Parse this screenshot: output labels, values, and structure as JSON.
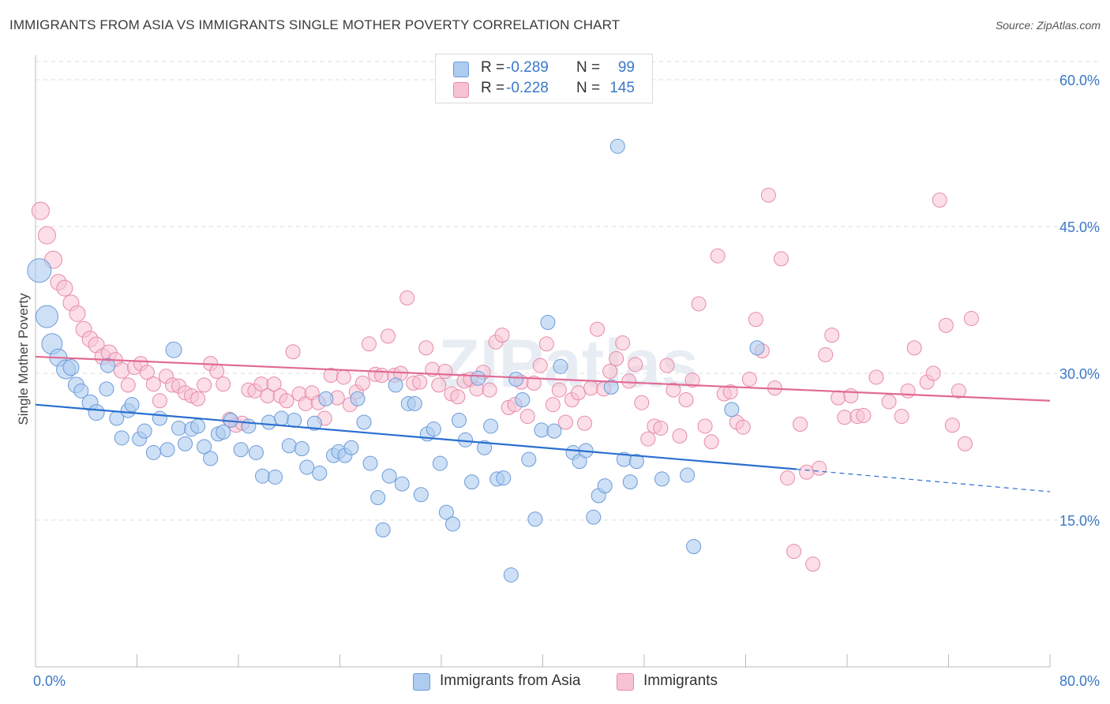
{
  "title": "IMMIGRANTS FROM ASIA VS IMMIGRANTS SINGLE MOTHER POVERTY CORRELATION CHART",
  "source": "Source: ZipAtlas.com",
  "watermark": "ZIPatlas",
  "legend_top": [
    {
      "r_label": "R =",
      "r_value": "-0.289",
      "n_label": "N =",
      "n_value": "99"
    },
    {
      "r_label": "R =",
      "r_value": "-0.228",
      "n_label": "N =",
      "n_value": "145"
    }
  ],
  "legend_bottom": [
    "Immigrants from Asia",
    "Immigrants"
  ],
  "colors": {
    "blue_fill": "#aecbf0",
    "blue_stroke": "#6b9bd8",
    "blue_line": "#2a6fcf",
    "pink_fill": "#f7c3d4",
    "pink_stroke": "#e88aa8",
    "pink_line": "#e06a93",
    "axis_label": "#3a78c9",
    "grid": "#dddddd"
  },
  "chart_data": {
    "type": "scatter",
    "title": "IMMIGRANTS FROM ASIA VS IMMIGRANTS SINGLE MOTHER POVERTY CORRELATION CHART",
    "xlabel": "",
    "ylabel": "Single Mother Poverty",
    "xlim": [
      0,
      80
    ],
    "ylim": [
      0,
      62.5
    ],
    "x_tick_labels": [
      "0.0%",
      "80.0%"
    ],
    "y_ticks": [
      15,
      30,
      45,
      60
    ],
    "y_tick_labels": [
      "15.0%",
      "30.0%",
      "45.0%",
      "60.0%"
    ],
    "grid": true,
    "series": [
      {
        "name": "Immigrants from Asia",
        "r": -0.289,
        "n": 99,
        "trend": {
          "x0": 0,
          "y0": 26.8,
          "x1": 60,
          "y1": 20.2,
          "dashed_to_x": 80,
          "dashed_to_y": 17.9
        },
        "points": [
          [
            0.3,
            40.5,
            14
          ],
          [
            0.9,
            35.8,
            13
          ],
          [
            1.3,
            33.0,
            12
          ],
          [
            1.8,
            31.6,
            10
          ],
          [
            2.4,
            30.4,
            11
          ],
          [
            2.8,
            30.6,
            9
          ],
          [
            3.2,
            28.8,
            9
          ],
          [
            3.6,
            28.2,
            8
          ],
          [
            4.3,
            27.0,
            9
          ],
          [
            4.8,
            26.0,
            9
          ],
          [
            5.6,
            28.4,
            8
          ],
          [
            5.7,
            30.8,
            8
          ],
          [
            6.4,
            25.4,
            8
          ],
          [
            6.8,
            23.4,
            8
          ],
          [
            7.3,
            26.2,
            8
          ],
          [
            7.6,
            26.8,
            8
          ],
          [
            8.2,
            23.3,
            8
          ],
          [
            8.6,
            24.1,
            8
          ],
          [
            9.3,
            21.9,
            8
          ],
          [
            9.8,
            25.4,
            8
          ],
          [
            10.4,
            22.2,
            8
          ],
          [
            10.9,
            32.4,
            9
          ],
          [
            11.3,
            24.4,
            8
          ],
          [
            11.8,
            22.8,
            8
          ],
          [
            12.3,
            24.3,
            8
          ],
          [
            12.8,
            24.6,
            8
          ],
          [
            13.3,
            22.5,
            8
          ],
          [
            13.8,
            21.3,
            8
          ],
          [
            14.4,
            23.8,
            8
          ],
          [
            14.8,
            24.0,
            8
          ],
          [
            15.4,
            25.2,
            8
          ],
          [
            16.2,
            22.2,
            8
          ],
          [
            16.8,
            24.6,
            8
          ],
          [
            17.4,
            21.9,
            8
          ],
          [
            17.9,
            19.5,
            8
          ],
          [
            18.4,
            25.0,
            8
          ],
          [
            18.9,
            19.4,
            8
          ],
          [
            19.4,
            25.4,
            8
          ],
          [
            20.0,
            22.6,
            8
          ],
          [
            20.4,
            25.2,
            8
          ],
          [
            21.0,
            22.3,
            8
          ],
          [
            21.4,
            20.4,
            8
          ],
          [
            22.0,
            24.9,
            8
          ],
          [
            22.4,
            19.8,
            8
          ],
          [
            22.9,
            27.4,
            8
          ],
          [
            23.5,
            21.6,
            8
          ],
          [
            23.9,
            22.0,
            8
          ],
          [
            24.4,
            21.6,
            8
          ],
          [
            24.9,
            22.4,
            8
          ],
          [
            25.4,
            27.4,
            8
          ],
          [
            25.9,
            25.0,
            8
          ],
          [
            26.4,
            20.8,
            8
          ],
          [
            27.0,
            17.3,
            8
          ],
          [
            27.4,
            14.0,
            8
          ],
          [
            27.9,
            19.5,
            8
          ],
          [
            28.4,
            28.8,
            8
          ],
          [
            28.9,
            18.7,
            8
          ],
          [
            29.4,
            26.9,
            8
          ],
          [
            29.9,
            26.9,
            8
          ],
          [
            30.4,
            17.6,
            8
          ],
          [
            30.9,
            23.8,
            8
          ],
          [
            31.4,
            24.3,
            8
          ],
          [
            31.9,
            20.8,
            8
          ],
          [
            32.4,
            15.8,
            8
          ],
          [
            32.9,
            14.6,
            8
          ],
          [
            33.4,
            25.2,
            8
          ],
          [
            33.9,
            23.2,
            8
          ],
          [
            34.4,
            18.9,
            8
          ],
          [
            34.9,
            29.5,
            8
          ],
          [
            35.4,
            22.4,
            8
          ],
          [
            35.9,
            24.6,
            8
          ],
          [
            36.4,
            19.2,
            8
          ],
          [
            36.9,
            19.3,
            8
          ],
          [
            37.5,
            9.4,
            8
          ],
          [
            37.9,
            29.4,
            8
          ],
          [
            38.4,
            27.3,
            8
          ],
          [
            38.9,
            21.2,
            8
          ],
          [
            39.4,
            15.1,
            8
          ],
          [
            39.9,
            24.2,
            8
          ],
          [
            40.4,
            35.2,
            8
          ],
          [
            40.9,
            24.1,
            8
          ],
          [
            41.4,
            30.7,
            8
          ],
          [
            42.4,
            21.9,
            8
          ],
          [
            42.9,
            21.0,
            8
          ],
          [
            43.4,
            22.1,
            8
          ],
          [
            44.0,
            15.3,
            8
          ],
          [
            44.4,
            17.5,
            8
          ],
          [
            44.9,
            18.5,
            8
          ],
          [
            45.4,
            28.6,
            8
          ],
          [
            45.9,
            53.2,
            8
          ],
          [
            46.4,
            21.2,
            8
          ],
          [
            46.9,
            18.9,
            8
          ],
          [
            47.4,
            21.0,
            8
          ],
          [
            49.4,
            19.2,
            8
          ],
          [
            51.4,
            19.6,
            8
          ],
          [
            51.9,
            12.3,
            8
          ],
          [
            54.9,
            26.3,
            8
          ],
          [
            56.9,
            32.6,
            8
          ]
        ]
      },
      {
        "name": "Immigrants",
        "r": -0.228,
        "n": 145,
        "trend": {
          "x0": 0,
          "y0": 31.7,
          "x1": 80,
          "y1": 27.2
        },
        "points": [
          [
            0.4,
            46.6,
            10
          ],
          [
            0.9,
            44.1,
            10
          ],
          [
            1.4,
            41.6,
            10
          ],
          [
            1.8,
            39.3,
            9
          ],
          [
            2.3,
            38.7,
            9
          ],
          [
            2.8,
            37.2,
            9
          ],
          [
            3.3,
            36.1,
            9
          ],
          [
            3.8,
            34.5,
            9
          ],
          [
            4.3,
            33.5,
            9
          ],
          [
            4.8,
            32.9,
            9
          ],
          [
            5.3,
            31.7,
            9
          ],
          [
            5.8,
            32.1,
            9
          ],
          [
            6.3,
            31.4,
            8
          ],
          [
            6.8,
            30.3,
            9
          ],
          [
            7.3,
            28.8,
            8
          ],
          [
            7.8,
            30.6,
            8
          ],
          [
            8.3,
            31.0,
            8
          ],
          [
            8.8,
            30.1,
            8
          ],
          [
            9.3,
            28.9,
            8
          ],
          [
            9.8,
            27.2,
            8
          ],
          [
            10.3,
            29.7,
            8
          ],
          [
            10.8,
            28.8,
            8
          ],
          [
            11.3,
            28.7,
            8
          ],
          [
            11.8,
            28.0,
            8
          ],
          [
            12.3,
            27.7,
            8
          ],
          [
            12.8,
            27.4,
            8
          ],
          [
            13.3,
            28.8,
            8
          ],
          [
            13.8,
            31.0,
            8
          ],
          [
            14.3,
            30.2,
            8
          ],
          [
            14.8,
            28.9,
            8
          ],
          [
            15.3,
            25.3,
            8
          ],
          [
            15.8,
            24.7,
            8
          ],
          [
            16.3,
            24.9,
            8
          ],
          [
            16.8,
            28.3,
            8
          ],
          [
            17.3,
            28.2,
            8
          ],
          [
            17.8,
            28.9,
            8
          ],
          [
            18.3,
            27.7,
            8
          ],
          [
            18.8,
            28.9,
            8
          ],
          [
            19.3,
            27.7,
            8
          ],
          [
            19.8,
            27.2,
            8
          ],
          [
            20.3,
            32.2,
            8
          ],
          [
            20.8,
            27.9,
            8
          ],
          [
            21.3,
            26.9,
            8
          ],
          [
            21.8,
            28.0,
            8
          ],
          [
            22.3,
            27.0,
            8
          ],
          [
            22.8,
            25.4,
            8
          ],
          [
            23.3,
            29.8,
            8
          ],
          [
            23.8,
            27.5,
            8
          ],
          [
            24.3,
            29.6,
            8
          ],
          [
            24.8,
            26.8,
            8
          ],
          [
            25.3,
            28.1,
            8
          ],
          [
            25.8,
            29.0,
            8
          ],
          [
            26.3,
            33.0,
            8
          ],
          [
            26.8,
            29.9,
            8
          ],
          [
            27.3,
            29.8,
            8
          ],
          [
            27.8,
            33.8,
            8
          ],
          [
            28.3,
            29.8,
            8
          ],
          [
            28.8,
            30.0,
            8
          ],
          [
            29.3,
            37.7,
            8
          ],
          [
            29.8,
            29.0,
            8
          ],
          [
            30.3,
            29.1,
            8
          ],
          [
            30.8,
            32.6,
            8
          ],
          [
            31.3,
            30.4,
            8
          ],
          [
            31.8,
            28.8,
            8
          ],
          [
            32.3,
            30.2,
            8
          ],
          [
            32.8,
            27.9,
            8
          ],
          [
            33.3,
            27.6,
            8
          ],
          [
            33.8,
            29.2,
            8
          ],
          [
            34.3,
            29.4,
            8
          ],
          [
            34.8,
            28.4,
            8
          ],
          [
            35.3,
            30.1,
            8
          ],
          [
            35.8,
            28.3,
            8
          ],
          [
            36.3,
            33.2,
            8
          ],
          [
            36.8,
            33.9,
            8
          ],
          [
            37.3,
            26.5,
            8
          ],
          [
            37.8,
            26.8,
            8
          ],
          [
            38.3,
            29.1,
            8
          ],
          [
            38.8,
            25.6,
            8
          ],
          [
            39.3,
            29.0,
            8
          ],
          [
            39.8,
            30.8,
            8
          ],
          [
            40.3,
            33.0,
            8
          ],
          [
            40.8,
            26.8,
            8
          ],
          [
            41.3,
            28.3,
            8
          ],
          [
            41.8,
            25.0,
            8
          ],
          [
            42.3,
            27.3,
            8
          ],
          [
            42.8,
            28.0,
            8
          ],
          [
            43.3,
            24.9,
            8
          ],
          [
            43.8,
            28.5,
            8
          ],
          [
            44.3,
            34.5,
            8
          ],
          [
            44.8,
            28.4,
            8
          ],
          [
            45.3,
            30.2,
            8
          ],
          [
            45.8,
            31.5,
            8
          ],
          [
            46.3,
            33.1,
            8
          ],
          [
            46.8,
            29.2,
            8
          ],
          [
            47.3,
            30.9,
            8
          ],
          [
            47.8,
            27.0,
            8
          ],
          [
            48.3,
            23.3,
            8
          ],
          [
            48.8,
            24.6,
            8
          ],
          [
            49.3,
            24.4,
            8
          ],
          [
            49.8,
            30.8,
            8
          ],
          [
            50.3,
            28.3,
            8
          ],
          [
            50.8,
            23.6,
            8
          ],
          [
            51.3,
            27.3,
            8
          ],
          [
            51.8,
            29.3,
            8
          ],
          [
            52.3,
            37.1,
            8
          ],
          [
            52.8,
            24.6,
            8
          ],
          [
            53.3,
            23.0,
            8
          ],
          [
            53.8,
            42.0,
            8
          ],
          [
            54.3,
            27.9,
            8
          ],
          [
            54.8,
            28.1,
            8
          ],
          [
            55.3,
            25.0,
            8
          ],
          [
            55.8,
            24.5,
            8
          ],
          [
            56.3,
            29.4,
            8
          ],
          [
            56.8,
            35.5,
            8
          ],
          [
            57.3,
            32.3,
            8
          ],
          [
            57.8,
            48.2,
            8
          ],
          [
            58.3,
            28.5,
            8
          ],
          [
            58.8,
            41.7,
            8
          ],
          [
            59.3,
            19.3,
            8
          ],
          [
            59.8,
            11.8,
            8
          ],
          [
            60.3,
            24.8,
            8
          ],
          [
            60.8,
            19.9,
            8
          ],
          [
            61.3,
            10.5,
            8
          ],
          [
            61.8,
            20.3,
            8
          ],
          [
            62.3,
            31.9,
            8
          ],
          [
            62.8,
            33.9,
            8
          ],
          [
            63.3,
            27.5,
            8
          ],
          [
            63.8,
            25.5,
            8
          ],
          [
            64.3,
            27.7,
            8
          ],
          [
            64.8,
            25.6,
            8
          ],
          [
            65.3,
            25.7,
            8
          ],
          [
            66.3,
            29.6,
            8
          ],
          [
            67.3,
            27.1,
            8
          ],
          [
            68.3,
            25.6,
            8
          ],
          [
            68.8,
            28.2,
            8
          ],
          [
            69.3,
            32.6,
            8
          ],
          [
            70.3,
            29.1,
            8
          ],
          [
            70.8,
            30.0,
            8
          ],
          [
            71.3,
            47.7,
            8
          ],
          [
            71.8,
            34.9,
            8
          ],
          [
            72.3,
            24.7,
            8
          ],
          [
            72.8,
            28.2,
            8
          ],
          [
            73.3,
            22.8,
            8
          ],
          [
            73.8,
            35.6,
            8
          ]
        ]
      }
    ]
  }
}
